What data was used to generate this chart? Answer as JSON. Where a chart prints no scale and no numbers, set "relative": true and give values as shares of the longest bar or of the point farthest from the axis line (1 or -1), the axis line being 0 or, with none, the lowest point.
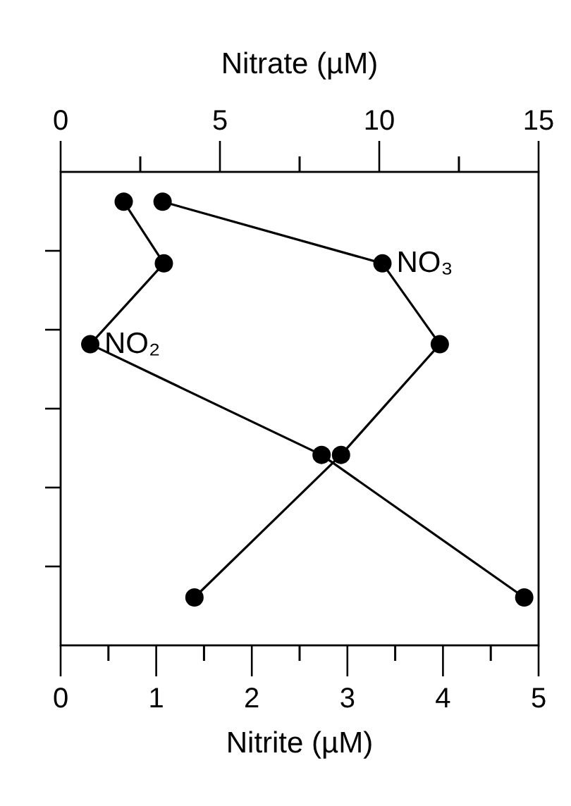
{
  "chart_data": {
    "type": "line",
    "xlabel": "Nitrite (µM)",
    "x2label": "Nitrate (µM)",
    "xlim": [
      0,
      5
    ],
    "xticks": [
      0,
      1,
      2,
      3,
      4,
      5
    ],
    "x2lim": [
      0,
      15
    ],
    "x2ticks": [
      0,
      5,
      10,
      15
    ],
    "relative": true,
    "marker": "circle",
    "line_style": "solid",
    "series": [
      {
        "name": "NO₂",
        "color": "#000000",
        "x": [
          0.66,
          1.08,
          0.31,
          2.73,
          4.85
        ],
        "values": [
          -0.07,
          -0.215,
          -0.405,
          -0.665,
          -1
        ]
      },
      {
        "name": "NO₃",
        "color": "#000000",
        "axis": "x2",
        "x": [
          3.2,
          10.1,
          11.9,
          8.8,
          4.2
        ],
        "values": [
          -0.07,
          -0.215,
          -0.405,
          -0.665,
          -1
        ]
      }
    ]
  }
}
